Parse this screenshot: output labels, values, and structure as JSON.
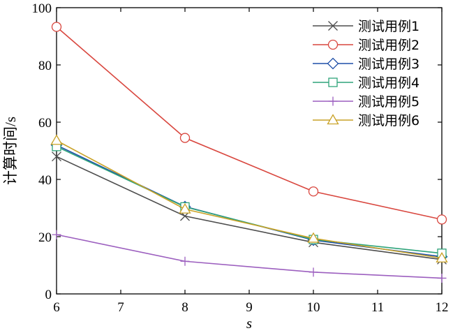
{
  "chart_data": {
    "type": "line",
    "xlabel": "s",
    "ylabel": "计算时间/s",
    "xlim": [
      6,
      12
    ],
    "ylim": [
      0,
      100
    ],
    "xticks": [
      "6",
      "7",
      "8",
      "9",
      "10",
      "11",
      "12"
    ],
    "yticks": [
      "0",
      "20",
      "40",
      "60",
      "80",
      "100"
    ],
    "grid": false,
    "legend_position": "top-right",
    "x": [
      6,
      8,
      10,
      12
    ],
    "series": [
      {
        "name": "测试用例1",
        "values": [
          48,
          27.2,
          18,
          12
        ],
        "color": "#4d4d4d",
        "marker": "x"
      },
      {
        "name": "测试用例2",
        "values": [
          93.3,
          54.5,
          35.8,
          26
        ],
        "color": "#d9473f",
        "marker": "circle"
      },
      {
        "name": "测试用例3",
        "values": [
          52,
          30.5,
          18.8,
          13
        ],
        "color": "#1f4fa8",
        "marker": "diamond"
      },
      {
        "name": "测试用例4",
        "values": [
          51.5,
          30.4,
          19,
          14.2
        ],
        "color": "#2ea37a",
        "marker": "square"
      },
      {
        "name": "测试用例5",
        "values": [
          20.7,
          11.4,
          7.6,
          5.5
        ],
        "color": "#9c5fbf",
        "marker": "plus"
      },
      {
        "name": "测试用例6",
        "values": [
          53.6,
          29.6,
          19.4,
          12.5
        ],
        "color": "#c9a227",
        "marker": "triangle"
      }
    ]
  }
}
